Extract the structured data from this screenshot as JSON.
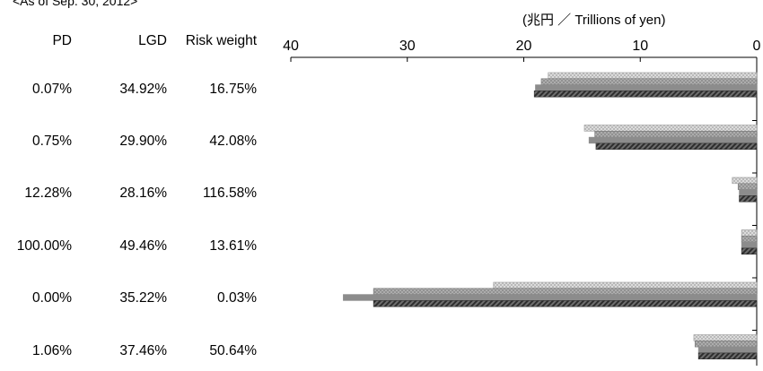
{
  "as_of": "<As of Sep. 30, 2012>",
  "unit_label": "(兆円 ／ Trillions of yen)",
  "table": {
    "headers": {
      "pd": "PD",
      "lgd": "LGD",
      "rw": "Risk weight"
    },
    "rows": [
      {
        "pd": "0.07%",
        "lgd": "34.92%",
        "rw": "16.75%"
      },
      {
        "pd": "0.75%",
        "lgd": "29.90%",
        "rw": "42.08%"
      },
      {
        "pd": "12.28%",
        "lgd": "28.16%",
        "rw": "116.58%"
      },
      {
        "pd": "100.00%",
        "lgd": "49.46%",
        "rw": "13.61%"
      },
      {
        "pd": "0.00%",
        "lgd": "35.22%",
        "rw": "0.03%"
      },
      {
        "pd": "1.06%",
        "lgd": "37.46%",
        "rw": "50.64%"
      }
    ]
  },
  "chart_data": {
    "type": "bar",
    "orientation": "horizontal",
    "x_reversed": true,
    "xlim": [
      0,
      40
    ],
    "xticks": [
      "40",
      "30",
      "20",
      "10",
      "0"
    ],
    "categories": [
      "0.07%",
      "0.75%",
      "12.28%",
      "100.00%",
      "0.00%",
      "1.06%"
    ],
    "series": [
      {
        "values": [
          17.9,
          14.8,
          2.1,
          1.3,
          22.6,
          5.4
        ],
        "pattern": "crosshatch-light",
        "color": "#cfcfcf"
      },
      {
        "values": [
          18.5,
          13.9,
          1.6,
          1.3,
          32.9,
          5.3
        ],
        "pattern": "crosshatch-mid",
        "color": "#a8a8a8"
      },
      {
        "values": [
          19.0,
          14.4,
          1.5,
          1.3,
          35.5,
          5.0
        ],
        "pattern": "solid",
        "color": "#8c8c8c"
      },
      {
        "values": [
          19.1,
          13.8,
          1.5,
          1.3,
          32.9,
          5.0
        ],
        "pattern": "diagonal-dark",
        "color": "#4a4a4a"
      }
    ]
  }
}
